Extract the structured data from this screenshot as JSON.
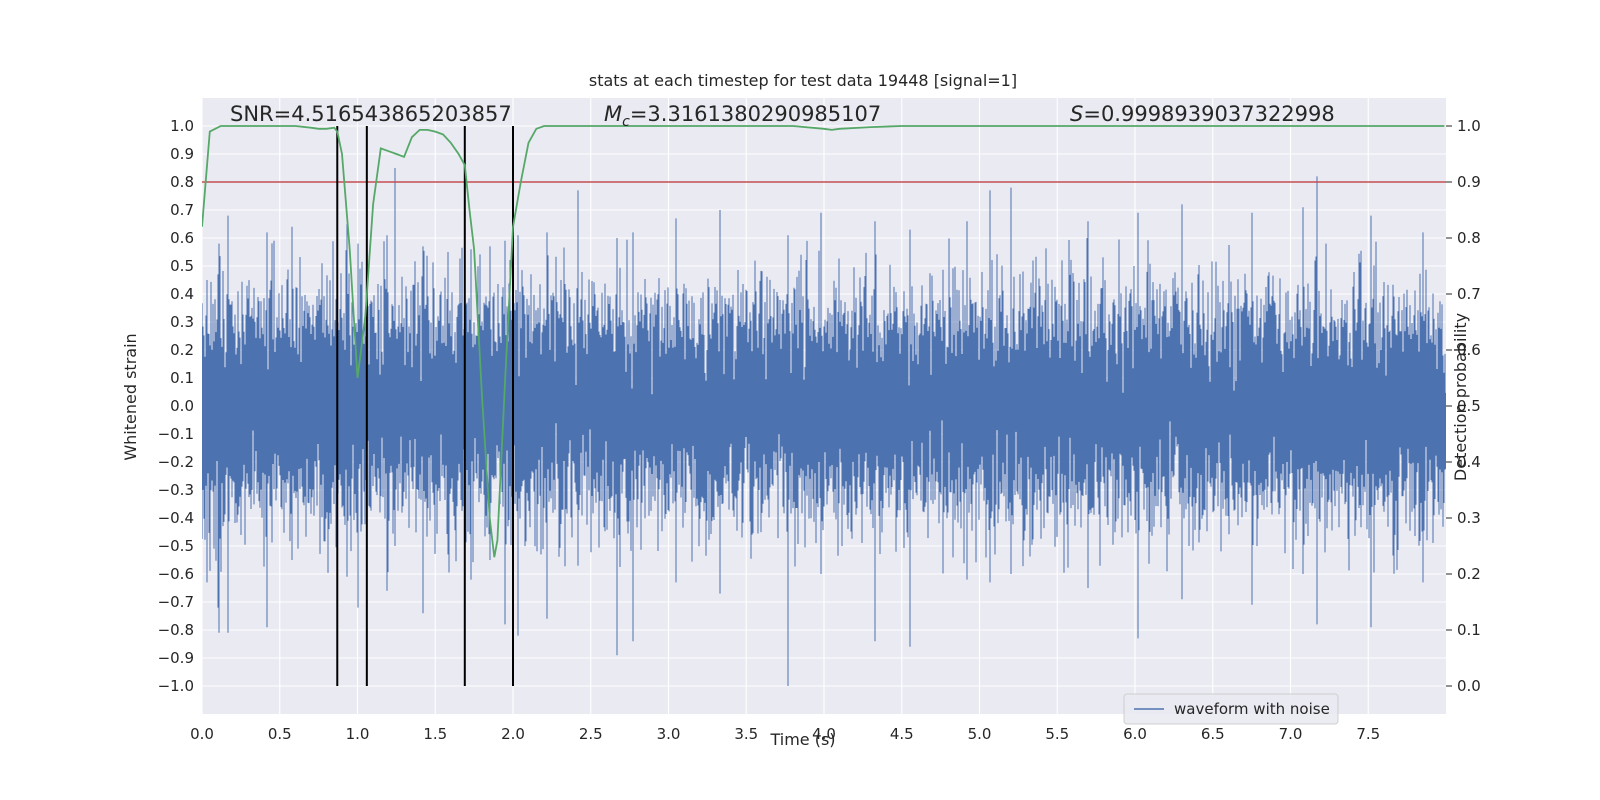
{
  "chart_data": {
    "type": "line",
    "title": "stats at each timestep for test data 19448 [signal=1]",
    "xlabel": "Time (s)",
    "ylabel": "Whitened strain",
    "y2label": "Detection probability",
    "xlim": [
      0,
      8.0
    ],
    "ylim": [
      -1.1,
      1.1
    ],
    "y2lim": [
      -0.05,
      1.05
    ],
    "xticks": [
      "0.0",
      "0.5",
      "1.0",
      "1.5",
      "2.0",
      "2.5",
      "3.0",
      "3.5",
      "4.0",
      "4.5",
      "5.0",
      "5.5",
      "6.0",
      "6.5",
      "7.0",
      "7.5"
    ],
    "yticks": [
      "1.0",
      "0.9",
      "0.8",
      "0.7",
      "0.6",
      "0.5",
      "0.4",
      "0.3",
      "0.2",
      "0.1",
      "0.0",
      "-0.1",
      "-0.2",
      "-0.3",
      "-0.4",
      "-0.5",
      "-0.6",
      "-0.7",
      "-0.8",
      "-0.9",
      "-1.0"
    ],
    "y2ticks": [
      "1.0",
      "0.9",
      "0.8",
      "0.7",
      "0.6",
      "0.5",
      "0.4",
      "0.3",
      "0.2",
      "0.1",
      "0.0"
    ],
    "grid": true,
    "legend": {
      "placement": "lower-right",
      "entries": [
        "waveform with noise"
      ]
    },
    "stats": [
      {
        "label": "SNR=4.516543865203857"
      },
      {
        "label": "Mc=3.3161380290985107",
        "symbol": "M",
        "sub": "c",
        "value": "=3.3161380290985107"
      },
      {
        "label": "S=0.9998939037322998",
        "symbol": "S",
        "value": "=0.9998939037322998"
      }
    ],
    "threshold": {
      "axis": "right",
      "value": 0.9,
      "color": "#c44e52"
    },
    "vertical_markers": {
      "x": [
        0.87,
        1.06,
        1.69,
        2.0
      ],
      "ymin": -1.0,
      "ymax": 1.0,
      "color": "#000000"
    },
    "series": [
      {
        "name": "waveform with noise",
        "axis": "left",
        "color": "#4c72b0",
        "kind": "noise",
        "sample_rate": 2048,
        "duration": 7.999,
        "std": 0.19,
        "peaks": [
          [
            0.03,
            0.45,
            -0.63
          ],
          [
            0.1,
            0.47,
            -0.72
          ],
          [
            0.11,
            0.58,
            -0.81
          ],
          [
            0.17,
            0.68,
            -0.81
          ],
          [
            0.42,
            0.62,
            -0.79
          ],
          [
            0.58,
            0.64,
            -0.55
          ],
          [
            0.87,
            0.6,
            -0.58
          ],
          [
            0.93,
            0.65,
            -0.61
          ],
          [
            1.0,
            0.58,
            -0.72
          ],
          [
            1.06,
            0.64,
            -0.72
          ],
          [
            1.19,
            0.61,
            -0.66
          ],
          [
            1.24,
            0.85,
            -0.5
          ],
          [
            1.42,
            0.57,
            -0.74
          ],
          [
            1.58,
            0.55,
            -0.53
          ],
          [
            1.73,
            0.56,
            -0.62
          ],
          [
            1.85,
            0.57,
            -0.55
          ],
          [
            1.95,
            0.59,
            -0.78
          ],
          [
            2.03,
            0.61,
            -0.82
          ],
          [
            2.22,
            0.62,
            -0.76
          ],
          [
            2.42,
            0.77,
            -0.57
          ],
          [
            2.67,
            0.6,
            -0.89
          ],
          [
            2.77,
            0.62,
            -0.84
          ],
          [
            3.05,
            0.67,
            -0.63
          ],
          [
            3.33,
            0.7,
            -0.67
          ],
          [
            3.77,
            0.61,
            -1.0
          ],
          [
            3.98,
            0.69,
            -0.6
          ],
          [
            4.33,
            0.66,
            -0.84
          ],
          [
            4.55,
            0.63,
            -0.86
          ],
          [
            4.92,
            0.66,
            -0.62
          ],
          [
            5.07,
            0.77,
            -0.63
          ],
          [
            5.2,
            0.78,
            -0.6
          ],
          [
            5.7,
            0.66,
            -0.65
          ],
          [
            6.02,
            0.69,
            -0.83
          ],
          [
            6.3,
            0.72,
            -0.69
          ],
          [
            6.75,
            0.69,
            -0.71
          ],
          [
            7.08,
            0.71,
            -0.6
          ],
          [
            7.17,
            0.82,
            -0.78
          ],
          [
            7.52,
            0.68,
            -0.79
          ],
          [
            7.85,
            0.62,
            -0.63
          ]
        ]
      },
      {
        "name": "",
        "axis": "right",
        "color": "#55a868",
        "x": [
          0.0,
          0.05,
          0.12,
          0.2,
          0.3,
          0.4,
          0.5,
          0.6,
          0.7,
          0.75,
          0.8,
          0.85,
          0.87,
          0.9,
          0.95,
          1.0,
          1.05,
          1.1,
          1.15,
          1.2,
          1.25,
          1.3,
          1.35,
          1.4,
          1.45,
          1.5,
          1.55,
          1.6,
          1.65,
          1.69,
          1.72,
          1.75,
          1.8,
          1.85,
          1.88,
          1.9,
          1.95,
          2.0,
          2.05,
          2.1,
          2.15,
          2.2,
          2.3,
          2.5,
          3.0,
          3.5,
          3.8,
          4.0,
          4.05,
          4.1,
          4.3,
          4.5,
          5.0,
          5.5,
          6.0,
          6.5,
          7.0,
          7.5,
          7.99
        ],
        "y": [
          0.82,
          0.99,
          1.0,
          1.0,
          1.0,
          1.0,
          1.0,
          1.0,
          0.997,
          0.995,
          0.995,
          0.997,
          0.99,
          0.95,
          0.78,
          0.55,
          0.66,
          0.86,
          0.96,
          0.955,
          0.95,
          0.945,
          0.98,
          0.993,
          0.993,
          0.99,
          0.985,
          0.97,
          0.95,
          0.93,
          0.85,
          0.78,
          0.52,
          0.3,
          0.23,
          0.26,
          0.55,
          0.82,
          0.9,
          0.97,
          0.995,
          1.0,
          1.0,
          1.0,
          1.0,
          1.0,
          1.0,
          0.995,
          0.993,
          0.995,
          0.998,
          1.0,
          1.0,
          1.0,
          1.0,
          1.0,
          1.0,
          1.0,
          1.0
        ]
      }
    ]
  }
}
